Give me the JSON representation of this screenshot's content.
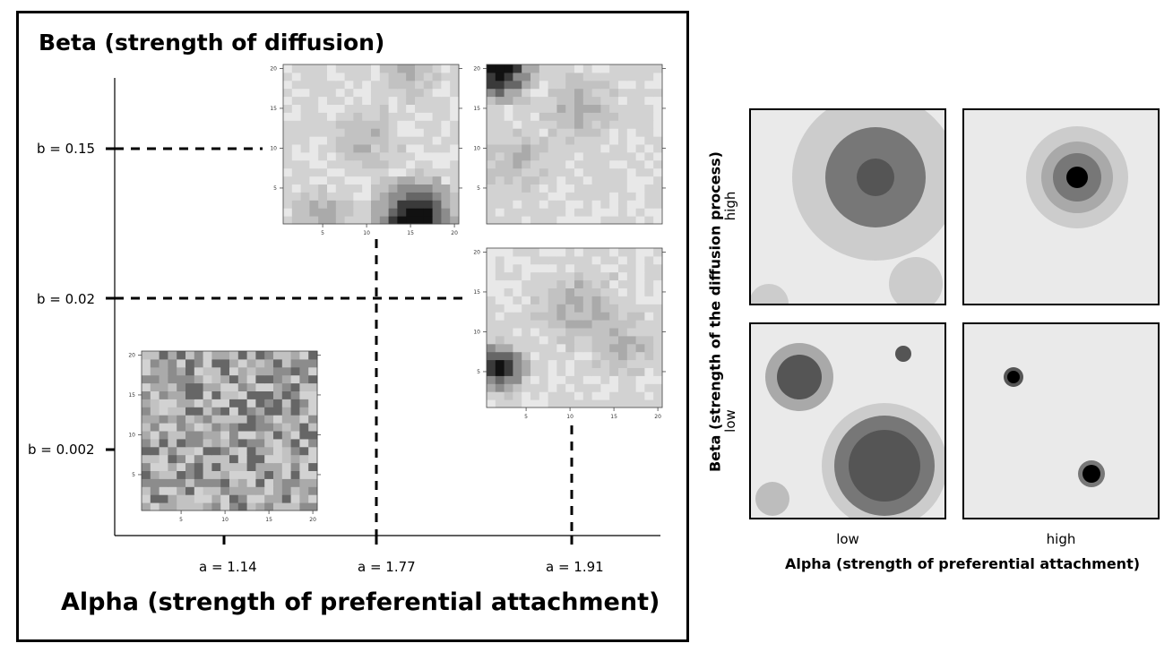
{
  "left": {
    "title": "Beta (strength of diffusion)",
    "x_title": "Alpha (strength of preferential attachment)",
    "beta_levels": [
      "b = 0.15",
      "b = 0.02",
      "b = 0.002"
    ],
    "alpha_levels": [
      "a = 1.14",
      "a = 1.77",
      "a = 1.91"
    ],
    "heatmaps": [
      {
        "id": "a1.77-b0.15",
        "alpha": "a = 1.77",
        "beta": "b = 0.15",
        "x_ticks": [
          "5",
          "10",
          "15",
          "20"
        ],
        "y_ticks": [
          "5",
          "10",
          "15",
          "20"
        ]
      },
      {
        "id": "a1.91-b0.15",
        "alpha": "a = 1.91",
        "beta": "b = 0.15",
        "x_ticks": [],
        "y_ticks": [
          "5",
          "10",
          "15",
          "20"
        ]
      },
      {
        "id": "a1.91-b0.02",
        "alpha": "a = 1.91",
        "beta": "b = 0.02",
        "x_ticks": [
          "5",
          "10",
          "15",
          "20"
        ],
        "y_ticks": [
          "5",
          "10",
          "15",
          "20"
        ]
      },
      {
        "id": "a1.14-b0.002",
        "alpha": "a = 1.14",
        "beta": "b = 0.002",
        "x_ticks": [
          "5",
          "10",
          "15",
          "20"
        ],
        "y_ticks": [
          "5",
          "10",
          "15",
          "20"
        ]
      }
    ]
  },
  "right": {
    "y_title": "Beta (strength of the diffusion process)",
    "x_title": "Alpha (strength of preferential attachment)",
    "y_categories": [
      "high",
      "low"
    ],
    "x_categories": [
      "low",
      "high"
    ]
  },
  "colors": {
    "heat_light": "#eeeeee",
    "heat_dark": "#111111",
    "panel_bg": "#eaeaea",
    "ring_1": "#cccccc",
    "ring_2": "#a9a9a9",
    "ring_3": "#777777",
    "core": "#555555"
  }
}
